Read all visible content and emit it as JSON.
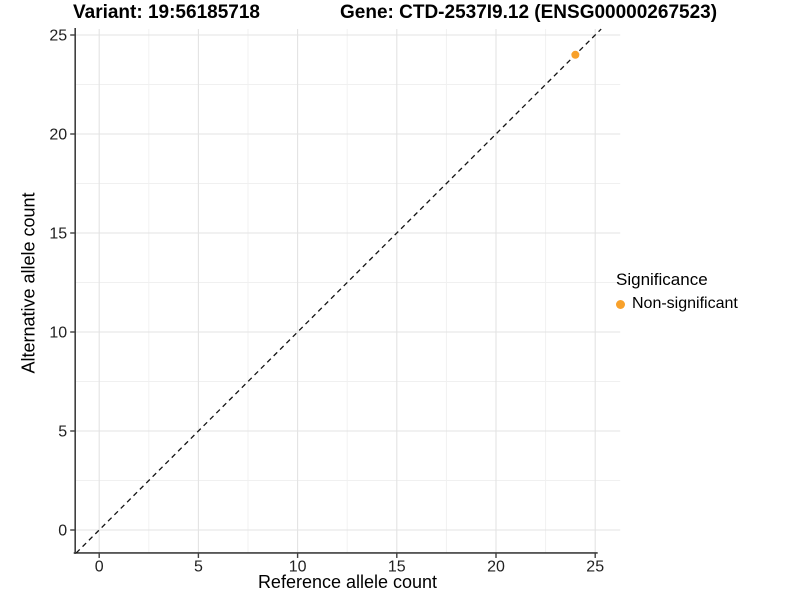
{
  "chart_data": {
    "type": "scatter",
    "titles": {
      "left": "Variant: 19:56185718",
      "right": "Gene: CTD-2537I9.12 (ENSG00000267523)"
    },
    "xlabel": "Reference allele count",
    "ylabel": "Alternative allele count",
    "x_ticks": [
      0,
      5,
      10,
      15,
      20,
      25
    ],
    "y_ticks": [
      0,
      5,
      10,
      15,
      20,
      25
    ],
    "x_minor_ticks": [
      2.5,
      7.5,
      12.5,
      17.5,
      22.5
    ],
    "y_minor_ticks": [
      2.5,
      7.5,
      12.5,
      17.5,
      22.5
    ],
    "xlim": [
      -1.21,
      26.26
    ],
    "ylim": [
      -1.16,
      25.3
    ],
    "grid": true,
    "legend": {
      "position": "right",
      "title": "Significance"
    },
    "identity_line": {
      "equation": "y = x",
      "style": "dashed",
      "color": "#141414"
    },
    "series": [
      {
        "name": "Non-significant",
        "color": "#F8A12B",
        "points": [
          {
            "x": 24,
            "y": 24
          }
        ]
      }
    ],
    "colors": {
      "axis_line": "#3f3f3f",
      "major_grid": "#e3e3e3",
      "minor_grid": "#f0f0f0",
      "tick_label": "#212121"
    }
  }
}
